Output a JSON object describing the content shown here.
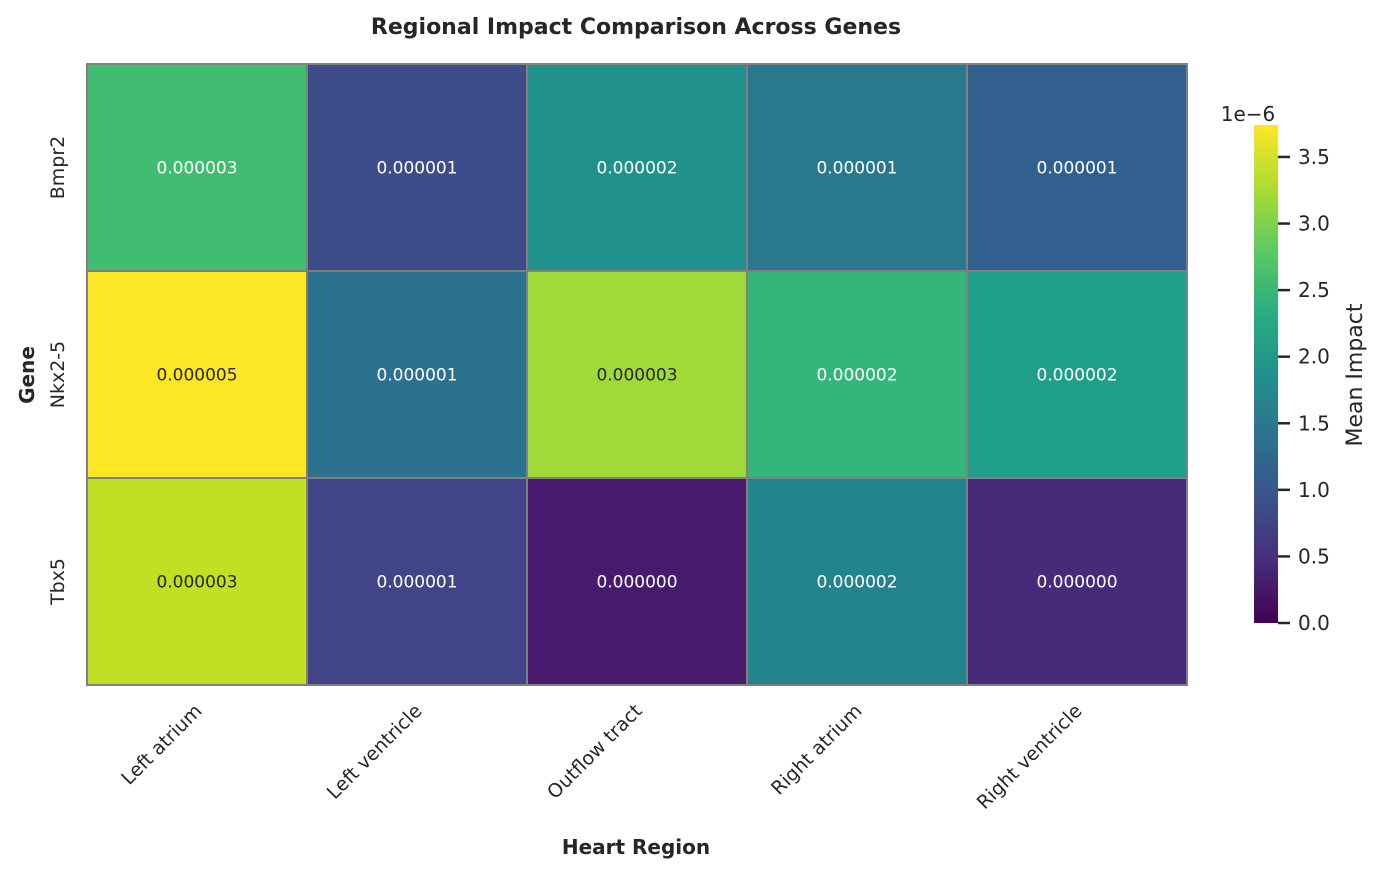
{
  "chart_data": {
    "type": "heatmap",
    "title": "Regional Impact Comparison Across Genes",
    "xlabel": "Heart Region",
    "ylabel": "Gene",
    "x_categories": [
      "Left atrium",
      "Left ventricle",
      "Outflow tract",
      "Right atrium",
      "Right ventricle"
    ],
    "y_categories": [
      "Bmpr2",
      "Nkx2-5",
      "Tbx5"
    ],
    "values": [
      [
        2.75e-06,
        8.5e-07,
        1.75e-06,
        1.4e-06,
        1.1e-06
      ],
      [
        4.6e-06,
        1.4e-06,
        3.2e-06,
        2.45e-06,
        1.95e-06
      ],
      [
        3.4e-06,
        6.5e-07,
        2.5e-07,
        1.6e-06,
        3.5e-07
      ]
    ],
    "annotations": [
      [
        "0.000003",
        "0.000001",
        "0.000002",
        "0.000001",
        "0.000001"
      ],
      [
        "0.000005",
        "0.000001",
        "0.000003",
        "0.000002",
        "0.000002"
      ],
      [
        "0.000003",
        "0.000001",
        "0.000000",
        "0.000002",
        "0.000000"
      ]
    ],
    "cell_colors": [
      [
        "#41bd72",
        "#3e4c8a",
        "#21918c",
        "#2a788e",
        "#31608e"
      ],
      [
        "#fde725",
        "#2c728e",
        "#a0da39",
        "#32b67a",
        "#1f9e89"
      ],
      [
        "#c2df23",
        "#414487",
        "#471a6e",
        "#23848e",
        "#472a7a"
      ]
    ],
    "colormap": "viridis",
    "colorbar": {
      "label": "Mean Impact",
      "offset_text": "1e−6",
      "range": [
        0,
        3.74e-06
      ],
      "ticks": [
        0.0,
        0.5,
        1.0,
        1.5,
        2.0,
        2.5,
        3.0,
        3.5
      ],
      "tick_labels": [
        "0.0",
        "0.5",
        "1.0",
        "1.5",
        "2.0",
        "2.5",
        "3.0",
        "3.5"
      ]
    },
    "grid_line_color": "#808080",
    "dark_text_cells": [
      [
        1,
        0
      ],
      [
        1,
        2
      ],
      [
        2,
        0
      ]
    ]
  }
}
